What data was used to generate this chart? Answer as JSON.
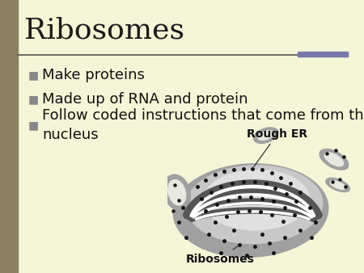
{
  "title": "Ribosomes",
  "title_fontsize": 26,
  "title_font": "serif",
  "title_color": "#1a1a1a",
  "background_color": "#f5f5d8",
  "left_bar_color": "#8b8060",
  "top_bar_color": "#888888",
  "top_bar_right_color": "#7777aa",
  "bullet_color": "#888888",
  "bullet_size": 10,
  "bullet_char": "■",
  "bullet_points": [
    "Make proteins",
    "Made up of RNA and protein",
    "Follow coded instructions that come from the\nnucleus"
  ],
  "bullet_fontsize": 13,
  "bullet_color_text": "#111111",
  "image_label_rough_er": "Rough ER",
  "image_label_ribosomes": "Ribosomes",
  "label_fontsize": 10,
  "er_gray": "#909090",
  "er_dark": "#555555",
  "er_white": "#ffffff",
  "dot_color": "#111111",
  "blob_gray": "#a0a0a0",
  "blob_light": "#c8c8c8"
}
